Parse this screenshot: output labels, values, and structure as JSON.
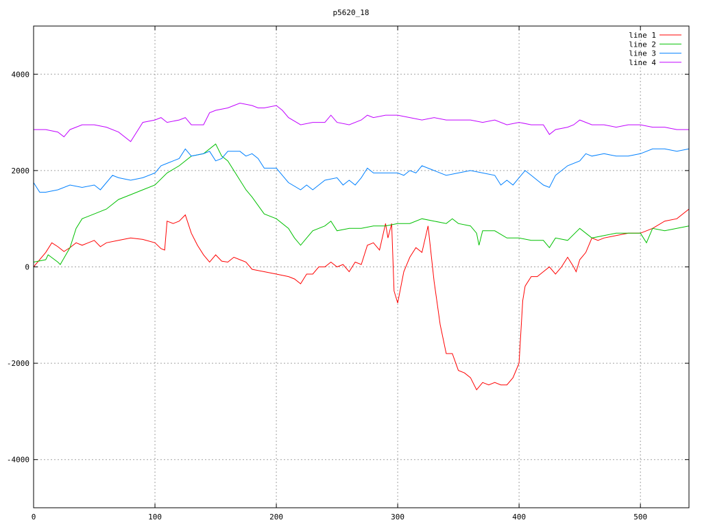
{
  "chart_data": {
    "type": "line",
    "title": "p5620_18",
    "xlabel": "",
    "ylabel": "",
    "xlim": [
      0,
      540
    ],
    "ylim": [
      -5000,
      5000
    ],
    "xticks": [
      0,
      100,
      200,
      300,
      400,
      500
    ],
    "yticks": [
      -4000,
      -2000,
      0,
      2000,
      4000
    ],
    "grid": true,
    "legend_position": "top-right",
    "series": [
      {
        "name": "line 1",
        "color": "#ff0000",
        "points": [
          [
            0,
            0
          ],
          [
            10,
            300
          ],
          [
            15,
            500
          ],
          [
            20,
            420
          ],
          [
            25,
            320
          ],
          [
            30,
            400
          ],
          [
            35,
            500
          ],
          [
            40,
            450
          ],
          [
            50,
            550
          ],
          [
            55,
            420
          ],
          [
            60,
            500
          ],
          [
            70,
            550
          ],
          [
            80,
            600
          ],
          [
            90,
            570
          ],
          [
            100,
            500
          ],
          [
            105,
            380
          ],
          [
            108,
            350
          ],
          [
            110,
            950
          ],
          [
            115,
            900
          ],
          [
            120,
            950
          ],
          [
            125,
            1080
          ],
          [
            130,
            700
          ],
          [
            135,
            450
          ],
          [
            140,
            250
          ],
          [
            145,
            100
          ],
          [
            150,
            250
          ],
          [
            155,
            120
          ],
          [
            160,
            100
          ],
          [
            165,
            200
          ],
          [
            170,
            150
          ],
          [
            175,
            100
          ],
          [
            180,
            -50
          ],
          [
            190,
            -100
          ],
          [
            200,
            -150
          ],
          [
            210,
            -200
          ],
          [
            215,
            -250
          ],
          [
            220,
            -350
          ],
          [
            225,
            -150
          ],
          [
            230,
            -150
          ],
          [
            235,
            0
          ],
          [
            240,
            0
          ],
          [
            245,
            100
          ],
          [
            250,
            0
          ],
          [
            255,
            50
          ],
          [
            260,
            -100
          ],
          [
            265,
            100
          ],
          [
            270,
            50
          ],
          [
            275,
            450
          ],
          [
            280,
            500
          ],
          [
            285,
            350
          ],
          [
            290,
            900
          ],
          [
            292,
            600
          ],
          [
            295,
            900
          ],
          [
            297,
            -500
          ],
          [
            300,
            -750
          ],
          [
            305,
            -100
          ],
          [
            310,
            200
          ],
          [
            315,
            400
          ],
          [
            320,
            300
          ],
          [
            325,
            850
          ],
          [
            330,
            -300
          ],
          [
            335,
            -1200
          ],
          [
            340,
            -1800
          ],
          [
            345,
            -1800
          ],
          [
            350,
            -2150
          ],
          [
            355,
            -2200
          ],
          [
            360,
            -2300
          ],
          [
            365,
            -2550
          ],
          [
            370,
            -2400
          ],
          [
            375,
            -2450
          ],
          [
            380,
            -2400
          ],
          [
            385,
            -2450
          ],
          [
            390,
            -2450
          ],
          [
            395,
            -2300
          ],
          [
            400,
            -2000
          ],
          [
            403,
            -700
          ],
          [
            405,
            -400
          ],
          [
            410,
            -200
          ],
          [
            415,
            -200
          ],
          [
            420,
            -100
          ],
          [
            425,
            0
          ],
          [
            430,
            -150
          ],
          [
            435,
            0
          ],
          [
            440,
            200
          ],
          [
            445,
            0
          ],
          [
            447,
            -100
          ],
          [
            450,
            150
          ],
          [
            455,
            300
          ],
          [
            460,
            600
          ],
          [
            465,
            550
          ],
          [
            470,
            600
          ],
          [
            480,
            650
          ],
          [
            490,
            700
          ],
          [
            500,
            700
          ],
          [
            510,
            800
          ],
          [
            520,
            950
          ],
          [
            530,
            1000
          ],
          [
            540,
            1200
          ]
        ]
      },
      {
        "name": "line 2",
        "color": "#00c000",
        "points": [
          [
            0,
            100
          ],
          [
            10,
            150
          ],
          [
            12,
            250
          ],
          [
            20,
            100
          ],
          [
            22,
            50
          ],
          [
            30,
            400
          ],
          [
            35,
            800
          ],
          [
            40,
            1000
          ],
          [
            45,
            1050
          ],
          [
            50,
            1100
          ],
          [
            60,
            1200
          ],
          [
            70,
            1400
          ],
          [
            80,
            1500
          ],
          [
            90,
            1600
          ],
          [
            100,
            1700
          ],
          [
            110,
            1950
          ],
          [
            120,
            2100
          ],
          [
            130,
            2300
          ],
          [
            140,
            2350
          ],
          [
            150,
            2550
          ],
          [
            155,
            2300
          ],
          [
            160,
            2200
          ],
          [
            170,
            1800
          ],
          [
            175,
            1600
          ],
          [
            180,
            1450
          ],
          [
            190,
            1100
          ],
          [
            200,
            1000
          ],
          [
            210,
            800
          ],
          [
            215,
            600
          ],
          [
            220,
            450
          ],
          [
            225,
            600
          ],
          [
            230,
            750
          ],
          [
            240,
            850
          ],
          [
            245,
            950
          ],
          [
            250,
            750
          ],
          [
            260,
            800
          ],
          [
            270,
            800
          ],
          [
            280,
            850
          ],
          [
            290,
            850
          ],
          [
            300,
            900
          ],
          [
            310,
            900
          ],
          [
            320,
            1000
          ],
          [
            330,
            950
          ],
          [
            340,
            900
          ],
          [
            345,
            1000
          ],
          [
            350,
            900
          ],
          [
            360,
            850
          ],
          [
            365,
            700
          ],
          [
            367,
            450
          ],
          [
            370,
            750
          ],
          [
            380,
            750
          ],
          [
            390,
            600
          ],
          [
            400,
            600
          ],
          [
            410,
            550
          ],
          [
            420,
            550
          ],
          [
            425,
            400
          ],
          [
            430,
            600
          ],
          [
            440,
            550
          ],
          [
            450,
            800
          ],
          [
            460,
            600
          ],
          [
            470,
            650
          ],
          [
            480,
            700
          ],
          [
            490,
            700
          ],
          [
            500,
            700
          ],
          [
            505,
            500
          ],
          [
            510,
            800
          ],
          [
            520,
            750
          ],
          [
            530,
            800
          ],
          [
            540,
            850
          ]
        ]
      },
      {
        "name": "line 3",
        "color": "#0080ff",
        "points": [
          [
            0,
            1750
          ],
          [
            5,
            1550
          ],
          [
            10,
            1550
          ],
          [
            20,
            1600
          ],
          [
            30,
            1700
          ],
          [
            40,
            1650
          ],
          [
            50,
            1700
          ],
          [
            55,
            1600
          ],
          [
            60,
            1750
          ],
          [
            65,
            1900
          ],
          [
            70,
            1850
          ],
          [
            80,
            1800
          ],
          [
            90,
            1850
          ],
          [
            100,
            1950
          ],
          [
            105,
            2100
          ],
          [
            110,
            2150
          ],
          [
            120,
            2250
          ],
          [
            125,
            2450
          ],
          [
            130,
            2300
          ],
          [
            140,
            2350
          ],
          [
            145,
            2400
          ],
          [
            150,
            2200
          ],
          [
            155,
            2250
          ],
          [
            160,
            2400
          ],
          [
            170,
            2400
          ],
          [
            175,
            2300
          ],
          [
            180,
            2350
          ],
          [
            185,
            2250
          ],
          [
            190,
            2050
          ],
          [
            200,
            2050
          ],
          [
            205,
            1900
          ],
          [
            210,
            1750
          ],
          [
            220,
            1600
          ],
          [
            225,
            1700
          ],
          [
            230,
            1600
          ],
          [
            235,
            1700
          ],
          [
            240,
            1800
          ],
          [
            250,
            1850
          ],
          [
            255,
            1700
          ],
          [
            260,
            1800
          ],
          [
            265,
            1700
          ],
          [
            270,
            1850
          ],
          [
            275,
            2050
          ],
          [
            280,
            1950
          ],
          [
            290,
            1950
          ],
          [
            300,
            1950
          ],
          [
            305,
            1900
          ],
          [
            310,
            2000
          ],
          [
            315,
            1950
          ],
          [
            320,
            2100
          ],
          [
            330,
            2000
          ],
          [
            340,
            1900
          ],
          [
            350,
            1950
          ],
          [
            360,
            2000
          ],
          [
            370,
            1950
          ],
          [
            380,
            1900
          ],
          [
            385,
            1700
          ],
          [
            390,
            1800
          ],
          [
            395,
            1700
          ],
          [
            400,
            1850
          ],
          [
            405,
            2000
          ],
          [
            410,
            1900
          ],
          [
            415,
            1800
          ],
          [
            420,
            1700
          ],
          [
            425,
            1650
          ],
          [
            430,
            1900
          ],
          [
            440,
            2100
          ],
          [
            450,
            2200
          ],
          [
            455,
            2350
          ],
          [
            460,
            2300
          ],
          [
            470,
            2350
          ],
          [
            480,
            2300
          ],
          [
            490,
            2300
          ],
          [
            500,
            2350
          ],
          [
            510,
            2450
          ],
          [
            520,
            2450
          ],
          [
            530,
            2400
          ],
          [
            540,
            2450
          ]
        ]
      },
      {
        "name": "line 4",
        "color": "#c000ff",
        "points": [
          [
            0,
            2850
          ],
          [
            10,
            2850
          ],
          [
            20,
            2800
          ],
          [
            25,
            2700
          ],
          [
            30,
            2850
          ],
          [
            40,
            2950
          ],
          [
            50,
            2950
          ],
          [
            60,
            2900
          ],
          [
            70,
            2800
          ],
          [
            80,
            2600
          ],
          [
            90,
            3000
          ],
          [
            100,
            3050
          ],
          [
            105,
            3100
          ],
          [
            110,
            3000
          ],
          [
            120,
            3050
          ],
          [
            125,
            3100
          ],
          [
            130,
            2950
          ],
          [
            140,
            2950
          ],
          [
            145,
            3200
          ],
          [
            150,
            3250
          ],
          [
            160,
            3300
          ],
          [
            165,
            3350
          ],
          [
            170,
            3400
          ],
          [
            180,
            3350
          ],
          [
            185,
            3300
          ],
          [
            190,
            3300
          ],
          [
            200,
            3350
          ],
          [
            205,
            3250
          ],
          [
            210,
            3100
          ],
          [
            220,
            2950
          ],
          [
            230,
            3000
          ],
          [
            240,
            3000
          ],
          [
            245,
            3150
          ],
          [
            250,
            3000
          ],
          [
            260,
            2950
          ],
          [
            270,
            3050
          ],
          [
            275,
            3150
          ],
          [
            280,
            3100
          ],
          [
            290,
            3150
          ],
          [
            300,
            3150
          ],
          [
            310,
            3100
          ],
          [
            320,
            3050
          ],
          [
            330,
            3100
          ],
          [
            340,
            3050
          ],
          [
            350,
            3050
          ],
          [
            360,
            3050
          ],
          [
            370,
            3000
          ],
          [
            380,
            3050
          ],
          [
            390,
            2950
          ],
          [
            400,
            3000
          ],
          [
            410,
            2950
          ],
          [
            420,
            2950
          ],
          [
            425,
            2750
          ],
          [
            430,
            2850
          ],
          [
            440,
            2900
          ],
          [
            445,
            2950
          ],
          [
            450,
            3050
          ],
          [
            455,
            3000
          ],
          [
            460,
            2950
          ],
          [
            470,
            2950
          ],
          [
            480,
            2900
          ],
          [
            490,
            2950
          ],
          [
            500,
            2950
          ],
          [
            510,
            2900
          ],
          [
            520,
            2900
          ],
          [
            530,
            2850
          ],
          [
            540,
            2850
          ]
        ]
      }
    ]
  }
}
